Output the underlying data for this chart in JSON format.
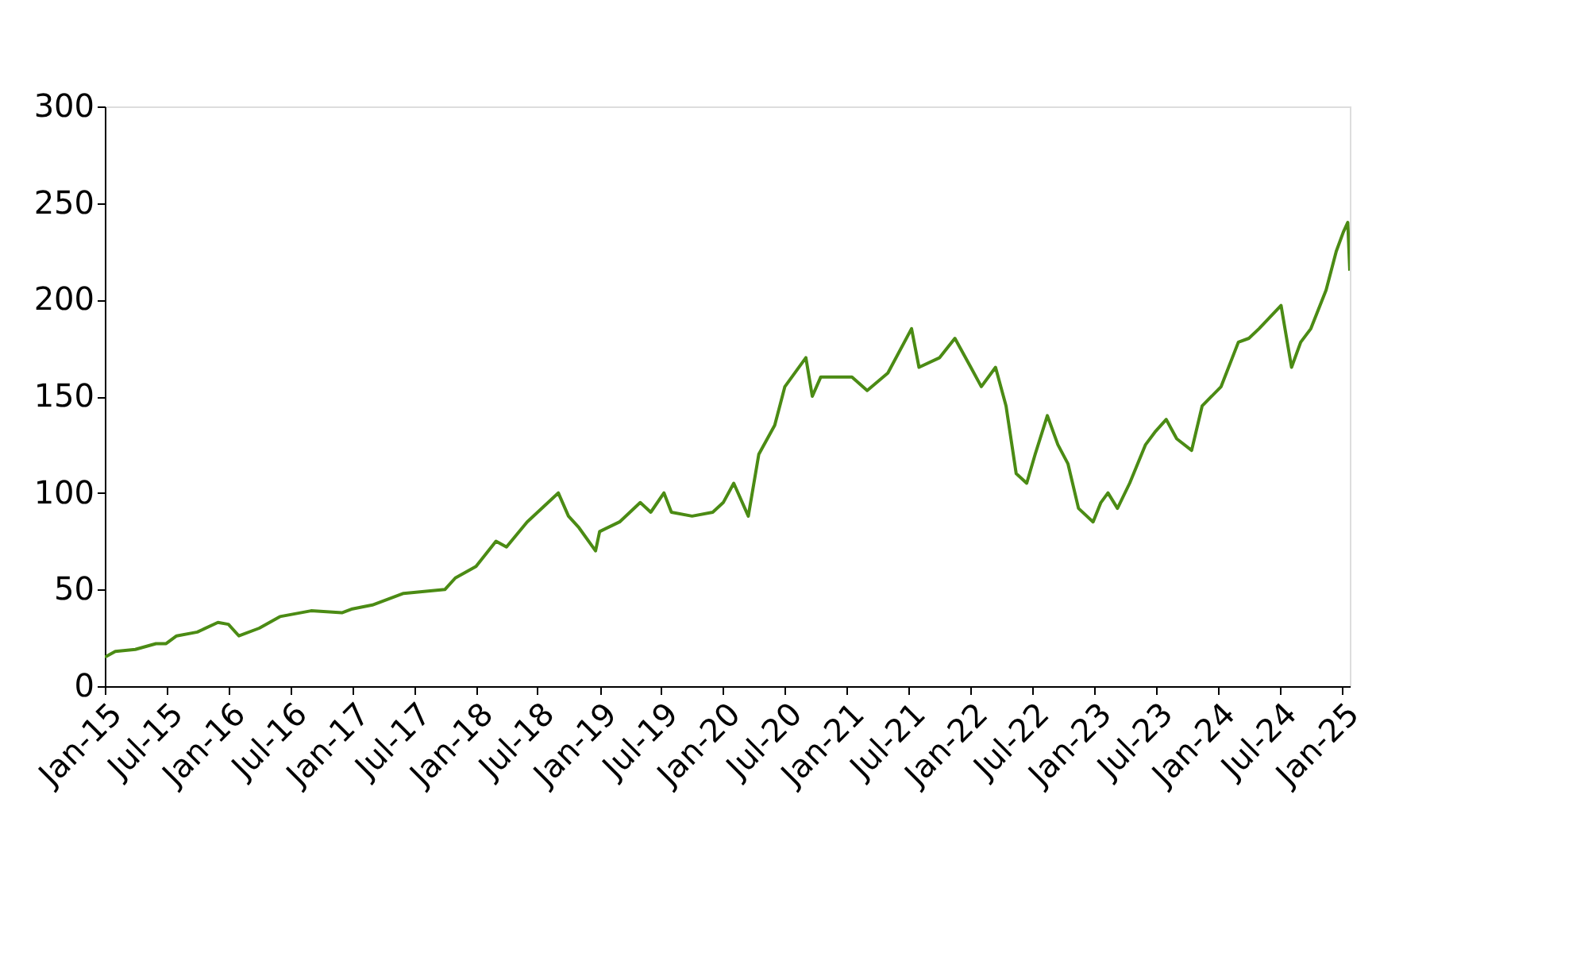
{
  "chart_data": {
    "type": "line",
    "x": [
      "2015-01-01",
      "2015-02-01",
      "2015-04-01",
      "2015-06-01",
      "2015-07-01",
      "2015-08-01",
      "2015-10-01",
      "2015-12-01",
      "2016-01-01",
      "2016-02-01",
      "2016-04-01",
      "2016-06-01",
      "2016-09-01",
      "2016-12-01",
      "2017-01-01",
      "2017-03-01",
      "2017-06-01",
      "2017-08-01",
      "2017-10-01",
      "2017-11-01",
      "2018-01-01",
      "2018-03-01",
      "2018-04-01",
      "2018-06-01",
      "2018-09-01",
      "2018-10-01",
      "2018-11-01",
      "2018-12-20",
      "2019-01-01",
      "2019-03-01",
      "2019-05-01",
      "2019-06-01",
      "2019-07-10",
      "2019-08-01",
      "2019-10-01",
      "2019-12-01",
      "2020-01-01",
      "2020-02-01",
      "2020-03-15",
      "2020-04-15",
      "2020-06-01",
      "2020-07-01",
      "2020-09-01",
      "2020-09-20",
      "2020-10-15",
      "2020-12-01",
      "2021-01-15",
      "2021-03-01",
      "2021-05-01",
      "2021-07-10",
      "2021-08-01",
      "2021-10-01",
      "2021-11-15",
      "2022-01-01",
      "2022-02-01",
      "2022-03-15",
      "2022-04-15",
      "2022-05-15",
      "2022-06-15",
      "2022-07-10",
      "2022-08-15",
      "2022-09-15",
      "2022-10-15",
      "2022-11-15",
      "2022-12-28",
      "2023-01-20",
      "2023-02-10",
      "2023-03-10",
      "2023-04-15",
      "2023-06-01",
      "2023-07-01",
      "2023-08-01",
      "2023-09-01",
      "2023-10-15",
      "2023-11-15",
      "2024-01-10",
      "2024-03-01",
      "2024-04-01",
      "2024-05-01",
      "2024-07-05",
      "2024-08-05",
      "2024-09-01",
      "2024-10-01",
      "2024-11-15",
      "2024-12-15",
      "2025-01-05",
      "2025-01-18",
      "2025-01-24"
    ],
    "series": [
      {
        "color": "#4b8b14",
        "values": [
          15,
          18,
          19,
          22,
          22,
          26,
          28,
          33,
          32,
          26,
          30,
          36,
          39,
          38,
          40,
          42,
          48,
          49,
          50,
          56,
          62,
          75,
          72,
          85,
          100,
          88,
          82,
          70,
          80,
          85,
          95,
          90,
          100,
          90,
          88,
          90,
          95,
          105,
          88,
          120,
          135,
          155,
          170,
          150,
          160,
          160,
          160,
          153,
          162,
          185,
          165,
          170,
          180,
          165,
          155,
          165,
          145,
          110,
          105,
          120,
          140,
          125,
          115,
          92,
          85,
          95,
          100,
          92,
          105,
          125,
          132,
          138,
          128,
          122,
          145,
          155,
          178,
          180,
          185,
          197,
          165,
          178,
          185,
          205,
          225,
          235,
          240,
          215
        ]
      }
    ],
    "xlim": [
      "2015-01-01",
      "2025-01-24"
    ],
    "xticks": [
      {
        "value": "2015-01-01",
        "label": "Jan-15"
      },
      {
        "value": "2015-07-01",
        "label": "Jul-15"
      },
      {
        "value": "2016-01-01",
        "label": "Jan-16"
      },
      {
        "value": "2016-07-01",
        "label": "Jul-16"
      },
      {
        "value": "2017-01-01",
        "label": "Jan-17"
      },
      {
        "value": "2017-07-01",
        "label": "Jul-17"
      },
      {
        "value": "2018-01-01",
        "label": "Jan-18"
      },
      {
        "value": "2018-07-01",
        "label": "Jul-18"
      },
      {
        "value": "2019-01-01",
        "label": "Jan-19"
      },
      {
        "value": "2019-07-01",
        "label": "Jul-19"
      },
      {
        "value": "2020-01-01",
        "label": "Jan-20"
      },
      {
        "value": "2020-07-01",
        "label": "Jul-20"
      },
      {
        "value": "2021-01-01",
        "label": "Jan-21"
      },
      {
        "value": "2021-07-01",
        "label": "Jul-21"
      },
      {
        "value": "2022-01-01",
        "label": "Jan-22"
      },
      {
        "value": "2022-07-01",
        "label": "Jul-22"
      },
      {
        "value": "2023-01-01",
        "label": "Jan-23"
      },
      {
        "value": "2023-07-01",
        "label": "Jul-23"
      },
      {
        "value": "2024-01-01",
        "label": "Jan-24"
      },
      {
        "value": "2024-07-01",
        "label": "Jul-24"
      },
      {
        "value": "2025-01-01",
        "label": "Jan-25"
      }
    ],
    "ylim": [
      0,
      300
    ],
    "yticks": [
      0,
      50,
      100,
      150,
      200,
      250,
      300
    ],
    "grid": false,
    "marker": "none",
    "line_style": "solid"
  }
}
